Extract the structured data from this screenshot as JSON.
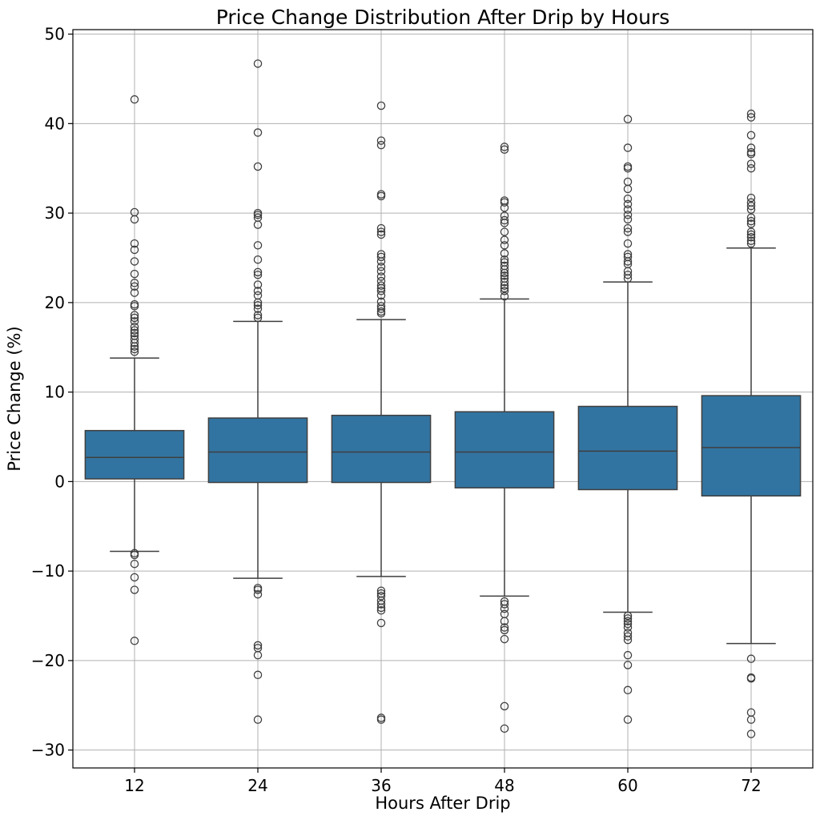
{
  "chart_data": {
    "type": "box",
    "title": "Price Change Distribution After Drip by Hours",
    "xlabel": "Hours After Drip",
    "ylabel": "Price Change (%)",
    "ylim": [
      -32,
      50.5
    ],
    "yticks": [
      -30,
      -20,
      -10,
      0,
      10,
      20,
      30,
      40,
      50
    ],
    "ytick_labels": [
      "−30",
      "−20",
      "−10",
      "0",
      "10",
      "20",
      "30",
      "40",
      "50"
    ],
    "grid": true,
    "box_color": "#3274a1",
    "line_color": "#3f3f3f",
    "categories": [
      "12",
      "24",
      "36",
      "48",
      "60",
      "72"
    ],
    "boxes": [
      {
        "category": "12",
        "whisker_low": -7.8,
        "q1": 0.3,
        "median": 2.7,
        "q3": 5.7,
        "whisker_high": 13.8,
        "outliers": [
          42.7,
          30.1,
          29.3,
          26.6,
          25.9,
          24.6,
          23.2,
          22.2,
          21.8,
          21.1,
          19.8,
          19.6,
          18.6,
          18.3,
          17.9,
          17.3,
          16.9,
          16.6,
          16.3,
          15.9,
          15.5,
          15.1,
          14.8,
          14.5,
          -8.0,
          -8.2,
          -9.2,
          -10.7,
          -12.1,
          -17.8
        ]
      },
      {
        "category": "24",
        "whisker_low": -10.8,
        "q1": -0.1,
        "median": 3.3,
        "q3": 7.1,
        "whisker_high": 17.9,
        "outliers": [
          46.7,
          39.0,
          35.2,
          30.0,
          29.8,
          29.5,
          28.7,
          26.4,
          24.8,
          23.4,
          23.1,
          22.0,
          21.3,
          20.8,
          20.0,
          19.7,
          19.3,
          18.6,
          18.3,
          -11.9,
          -12.1,
          -12.6,
          -18.3,
          -18.6,
          -19.4,
          -21.6,
          -26.6
        ]
      },
      {
        "category": "36",
        "whisker_low": -10.6,
        "q1": -0.1,
        "median": 3.3,
        "q3": 7.4,
        "whisker_high": 18.1,
        "outliers": [
          42.0,
          38.1,
          37.6,
          32.1,
          31.9,
          28.3,
          27.9,
          27.6,
          25.4,
          25.1,
          24.6,
          24.0,
          23.5,
          22.9,
          22.4,
          21.9,
          21.6,
          21.3,
          20.8,
          20.1,
          19.6,
          19.3,
          19.0,
          18.8,
          -12.2,
          -12.5,
          -12.8,
          -13.3,
          -13.7,
          -14.1,
          -14.4,
          -15.8,
          -26.4,
          -26.6
        ]
      },
      {
        "category": "48",
        "whisker_low": -12.8,
        "q1": -0.7,
        "median": 3.3,
        "q3": 7.8,
        "whisker_high": 20.4,
        "outliers": [
          37.4,
          37.1,
          31.4,
          31.2,
          30.6,
          29.7,
          29.2,
          28.9,
          27.9,
          27.0,
          26.4,
          25.5,
          24.8,
          24.5,
          24.1,
          23.7,
          23.3,
          23.0,
          22.7,
          22.3,
          21.9,
          21.6,
          21.3,
          20.7,
          -13.4,
          -13.7,
          -14.2,
          -14.8,
          -15.6,
          -16.3,
          -16.6,
          -17.6,
          -25.1,
          -27.6
        ]
      },
      {
        "category": "60",
        "whisker_low": -14.6,
        "q1": -0.9,
        "median": 3.4,
        "q3": 8.4,
        "whisker_high": 22.3,
        "outliers": [
          40.5,
          37.3,
          35.2,
          35.0,
          33.5,
          32.7,
          31.6,
          31.0,
          30.4,
          29.8,
          29.3,
          28.3,
          27.9,
          26.6,
          25.4,
          25.1,
          24.6,
          24.3,
          23.5,
          23.1,
          22.7,
          -15.0,
          -15.3,
          -15.6,
          -15.9,
          -16.3,
          -16.9,
          -17.3,
          -17.7,
          -19.4,
          -20.5,
          -23.3,
          -26.6
        ]
      },
      {
        "category": "72",
        "whisker_low": -18.1,
        "q1": -1.6,
        "median": 3.8,
        "q3": 9.6,
        "whisker_high": 26.1,
        "outliers": [
          41.1,
          40.7,
          38.7,
          37.3,
          36.8,
          36.6,
          35.5,
          35.0,
          31.7,
          31.2,
          30.8,
          30.4,
          29.5,
          29.1,
          28.8,
          27.9,
          27.6,
          27.3,
          26.9,
          26.6,
          -19.8,
          -21.9,
          -22.0,
          -25.8,
          -26.6,
          -28.2
        ]
      }
    ]
  }
}
